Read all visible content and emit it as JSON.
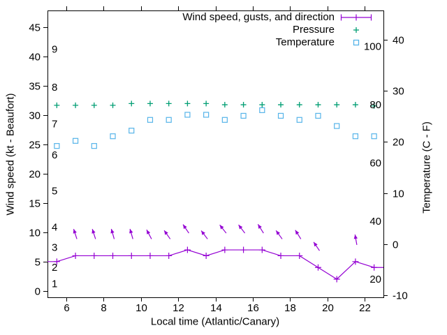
{
  "figure": {
    "background": "#ffffff",
    "text_color": "#000000"
  },
  "chart_data": {
    "type": "line",
    "title": "",
    "xlabel": "Local time (Atlantic/Canary)",
    "ylabel_left": "Wind speed (kt - Beaufort)",
    "ylabel_right": "Temperature (C - F)",
    "grid": false,
    "x_range": [
      5,
      23
    ],
    "x_ticks": [
      6,
      8,
      10,
      12,
      14,
      16,
      18,
      20,
      22
    ],
    "left_axis": {
      "ticks": [
        0,
        5,
        10,
        15,
        20,
        25,
        30,
        35,
        40,
        45
      ],
      "range": [
        -1.1,
        47.9
      ]
    },
    "right_axis": {
      "ticks": [
        -10,
        0,
        10,
        20,
        30,
        40
      ],
      "range": [
        -10.4,
        45.7
      ]
    },
    "pressure_axis": {
      "inner_labels": [
        20,
        40,
        60,
        80,
        100
      ],
      "range": [
        13.8,
        112.4
      ]
    },
    "beaufort_inner_labels": [
      {
        "label": "1",
        "kt": 1.2
      },
      {
        "label": "2",
        "kt": 4.0
      },
      {
        "label": "3",
        "kt": 7.4
      },
      {
        "label": "4",
        "kt": 10.9
      },
      {
        "label": "5",
        "kt": 17.1
      },
      {
        "label": "6",
        "kt": 23.2
      },
      {
        "label": "7",
        "kt": 28.5
      },
      {
        "label": "8",
        "kt": 34.8
      },
      {
        "label": "9",
        "kt": 41.3
      }
    ],
    "x": [
      5.5,
      6.5,
      7.5,
      8.5,
      9.5,
      10.5,
      11.5,
      12.5,
      13.5,
      14.5,
      15.5,
      16.5,
      17.5,
      18.5,
      19.5,
      20.5,
      21.5,
      22.5
    ],
    "series": [
      {
        "name": "Wind speed, gusts, and direction",
        "color": "#9400d3",
        "axis": "left",
        "marker": "plus",
        "values": [
          5,
          6,
          6,
          6,
          6,
          6,
          6,
          7,
          6,
          7,
          7,
          7,
          6,
          6,
          4,
          2,
          5,
          4
        ],
        "line_edge_start": {
          "x": 5,
          "y": 5
        },
        "line_edge_end": {
          "x": 23,
          "y": 4
        }
      },
      {
        "name": "Pressure",
        "color": "#009e73",
        "axis": "pressure",
        "marker": "plus",
        "values": [
          79.8,
          79.8,
          79.8,
          79.8,
          80.4,
          80.4,
          80.4,
          80.4,
          80.4,
          80,
          80,
          80,
          80,
          80,
          80,
          80,
          80,
          79.6
        ]
      },
      {
        "name": "Temperature",
        "color": "#56b4e9",
        "axis": "right",
        "marker": "open-square",
        "values": [
          19.2,
          20.2,
          19.2,
          21.1,
          22.2,
          24.3,
          24.3,
          25.3,
          25.3,
          24.3,
          25.1,
          26.2,
          25.1,
          24.3,
          25.1,
          23.1,
          21.1,
          21.1
        ]
      }
    ],
    "wind_arrows": [
      {
        "t": 6.5,
        "dir": -18
      },
      {
        "t": 7.5,
        "dir": -18
      },
      {
        "t": 8.5,
        "dir": -16
      },
      {
        "t": 9.5,
        "dir": -16
      },
      {
        "t": 10.5,
        "dir": -28
      },
      {
        "t": 11.5,
        "dir": -35
      },
      {
        "t": 12.5,
        "dir": -34
      },
      {
        "t": 13.5,
        "dir": -37
      },
      {
        "t": 14.5,
        "dir": -38
      },
      {
        "t": 15.5,
        "dir": -37
      },
      {
        "t": 16.5,
        "dir": -32
      },
      {
        "t": 17.5,
        "dir": -36
      },
      {
        "t": 18.5,
        "dir": -32
      },
      {
        "t": 19.5,
        "dir": -34
      },
      {
        "t": 21.5,
        "dir": -10
      }
    ],
    "legend": {
      "position": "top-right-inside"
    }
  }
}
